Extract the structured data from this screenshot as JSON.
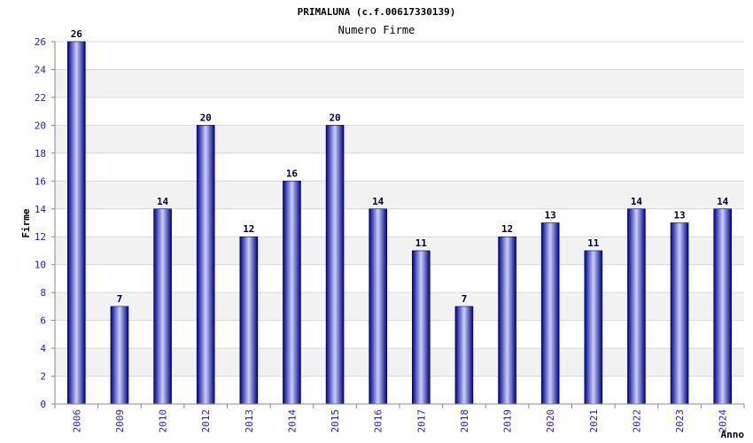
{
  "chart_data": {
    "type": "bar",
    "title": "PRIMALUNA (c.f.00617330139)",
    "subtitle": "Numero Firme",
    "xlabel": "Anno",
    "ylabel": "Firme",
    "categories": [
      "2006",
      "2009",
      "2010",
      "2012",
      "2013",
      "2014",
      "2015",
      "2016",
      "2017",
      "2018",
      "2019",
      "2020",
      "2021",
      "2022",
      "2023",
      "2024"
    ],
    "values": [
      26,
      7,
      14,
      20,
      12,
      16,
      20,
      14,
      11,
      7,
      12,
      13,
      11,
      14,
      13,
      14
    ],
    "ylim": [
      0,
      26
    ],
    "yticks": [
      0,
      2,
      4,
      6,
      8,
      10,
      12,
      14,
      16,
      18,
      20,
      22,
      24,
      26
    ],
    "grid": true,
    "colors": {
      "bar_dark": "#00008b",
      "bar_light": "#c8d0f8",
      "band": "#f2f2f2",
      "tick_text": "#1f1fbf"
    }
  }
}
